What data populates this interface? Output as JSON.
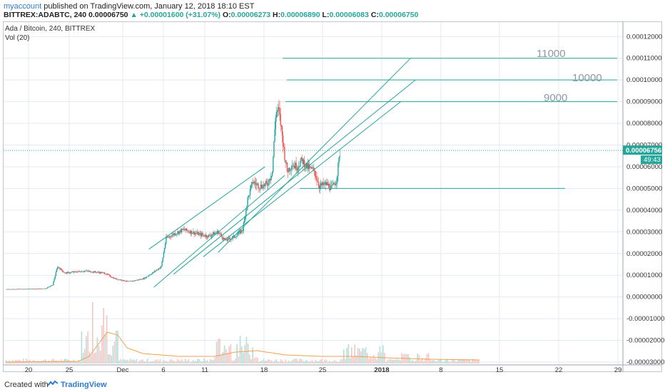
{
  "header": {
    "user": "myaccount",
    "published": " published on TradingView.com, January 12, 2018 18:10 EST",
    "symbol": "BITTREX:ADABTC, 240",
    "last": "0.00006750",
    "arrow": "▲",
    "change": "+0.00001600 (+31.07%)",
    "o_label": "O:",
    "o": "0.00006273",
    "h_label": "H:",
    "h": "0.00006890",
    "l_label": "L:",
    "l": "0.00006083",
    "c_label": "C:",
    "c": "0.00006750"
  },
  "legend": {
    "title": "Ada / Bitcoin, 240, BITTREX",
    "vol": "Vol (20)"
  },
  "price_badge": "0.00006756",
  "countdown_badge": "49:43",
  "footer": {
    "created": "Created with",
    "brand": "TradingView"
  },
  "colors": {
    "up": "#26a69a",
    "down": "#ef5350",
    "line": "#26a69a",
    "vol_up": "#b8dcd6",
    "vol_down": "#f4c6c4",
    "vol_ma": "#f0a050"
  },
  "chart_data": {
    "type": "candlestick",
    "y_ticks": [
      "0.00012000",
      "0.00011000",
      "0.00010000",
      "0.00009000",
      "0.00008000",
      "0.00007000",
      "0.00006000",
      "0.00005000",
      "0.00004000",
      "0.00003000",
      "0.00002000",
      "0.00001000",
      "0.00000000",
      "-0.00001000",
      "-0.00002000",
      "-0.00003000"
    ],
    "x_ticks": [
      "20",
      "25",
      "Dec",
      "6",
      "11",
      "18",
      "25",
      "2018",
      "8",
      "15",
      "22",
      "29"
    ],
    "ylim": [
      -3e-05,
      0.000125
    ],
    "horizontal_levels": [
      0.00011,
      0.0001,
      9e-05,
      5e-05
    ],
    "level_labels": [
      "11000",
      "10000",
      "9000"
    ],
    "last_price": 6.75e-05,
    "price_path": [
      {
        "day": 0,
        "close": 3.5e-06
      },
      {
        "day": 8,
        "close": 3.8e-06
      },
      {
        "day": 9.5,
        "close": 5.5e-06
      },
      {
        "day": 10.5,
        "close": 1.4e-05
      },
      {
        "day": 12,
        "close": 1.1e-05
      },
      {
        "day": 16,
        "close": 1.2e-05
      },
      {
        "day": 20,
        "close": 1.1e-05
      },
      {
        "day": 22,
        "close": 8.5e-06
      },
      {
        "day": 25,
        "close": 7e-06
      },
      {
        "day": 28,
        "close": 8.5e-06
      },
      {
        "day": 30,
        "close": 1.15e-05
      },
      {
        "day": 31.5,
        "close": 1.4e-05
      },
      {
        "day": 32.5,
        "close": 2.7e-05
      },
      {
        "day": 34,
        "close": 2.9e-05
      },
      {
        "day": 36,
        "close": 3.1e-05
      },
      {
        "day": 39,
        "close": 2.9e-05
      },
      {
        "day": 41,
        "close": 2.8e-05
      },
      {
        "day": 43,
        "close": 3e-05
      },
      {
        "day": 44.5,
        "close": 2.6e-05
      },
      {
        "day": 46.5,
        "close": 2.8e-05
      },
      {
        "day": 48,
        "close": 3.1e-05
      },
      {
        "day": 49,
        "close": 4.5e-05
      },
      {
        "day": 50,
        "close": 5.3e-05
      },
      {
        "day": 51.5,
        "close": 5.1e-05
      },
      {
        "day": 53,
        "close": 5.2e-05
      },
      {
        "day": 54,
        "close": 5.8e-05
      },
      {
        "day": 54.7,
        "close": 8.5e-05
      },
      {
        "day": 55.3,
        "close": 8.6e-05
      },
      {
        "day": 55.8,
        "close": 7.8e-05
      },
      {
        "day": 56.5,
        "close": 6.5e-05
      },
      {
        "day": 57,
        "close": 5.8e-05
      },
      {
        "day": 58,
        "close": 6.1e-05
      },
      {
        "day": 59,
        "close": 6e-05
      },
      {
        "day": 60,
        "close": 6.3e-05
      },
      {
        "day": 61,
        "close": 6e-05
      },
      {
        "day": 62.5,
        "close": 5.8e-05
      },
      {
        "day": 63.5,
        "close": 5.1e-05
      },
      {
        "day": 65,
        "close": 5.2e-05
      },
      {
        "day": 66,
        "close": 5e-05
      },
      {
        "day": 67,
        "close": 5.4e-05
      },
      {
        "day": 67.7,
        "close": 6.7e-05
      }
    ],
    "trend_lines": [
      {
        "from": [
          30,
          4.5e-06
        ],
        "to": [
          56.5,
          5.6e-05
        ]
      },
      {
        "from": [
          34,
          1.05e-05
        ],
        "to": [
          83,
          0.0001
        ]
      },
      {
        "from": [
          43,
          2.05e-05
        ],
        "to": [
          82,
          0.00011
        ]
      },
      {
        "from": [
          29,
          2.2e-05
        ],
        "to": [
          52.5,
          6e-05
        ]
      },
      {
        "from": [
          40,
          1.85e-05
        ],
        "to": [
          80,
          9e-05
        ]
      }
    ]
  }
}
